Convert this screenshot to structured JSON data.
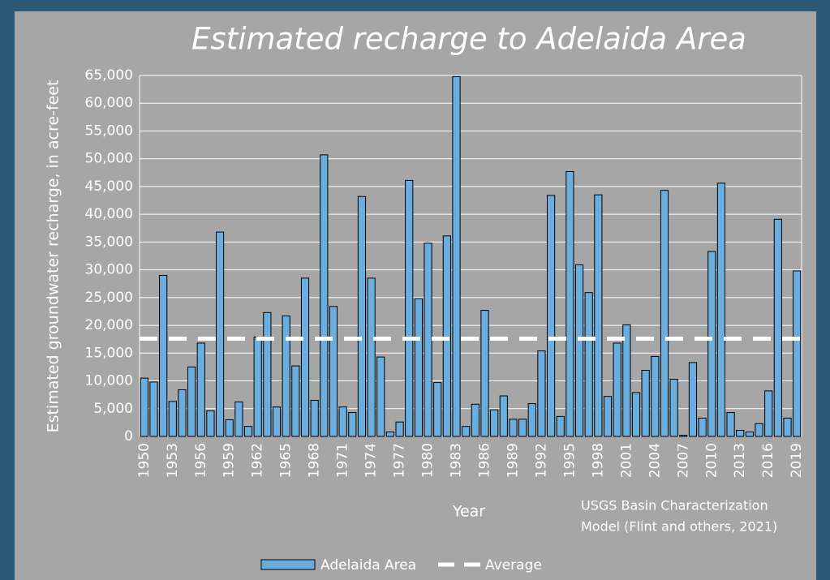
{
  "chart_data": {
    "type": "bar",
    "title": "Estimated recharge to Adelaida Area",
    "x_label": "Year",
    "y_label": "Estimated groundwater recharge, in acre-feet",
    "annotation": [
      "USGS Basin Characterization",
      "Model (Flint and others, 2021)"
    ],
    "categories": [
      "1950",
      null,
      null,
      "1953",
      null,
      null,
      "1956",
      null,
      null,
      "1959",
      null,
      null,
      "1962",
      null,
      null,
      "1965",
      null,
      null,
      "1968",
      null,
      null,
      "1971",
      null,
      null,
      "1974",
      null,
      null,
      "1977",
      null,
      null,
      "1980",
      null,
      null,
      "1983",
      null,
      null,
      "1986",
      null,
      null,
      "1989",
      null,
      null,
      "1992",
      null,
      null,
      "1995",
      null,
      null,
      "1998",
      null,
      null,
      "2001",
      null,
      null,
      "2004",
      null,
      null,
      "2007",
      null,
      null,
      "2010",
      null,
      null,
      "2013",
      null,
      null,
      "2016",
      null,
      null,
      "2019"
    ],
    "series": [
      {
        "name": "Adelaida Area",
        "color": "#6aaee0",
        "values": [
          10500,
          9800,
          29000,
          6300,
          8400,
          12500,
          16800,
          4600,
          36800,
          3000,
          6200,
          1800,
          17900,
          22300,
          5300,
          21700,
          12700,
          28500,
          6500,
          50700,
          23400,
          5300,
          4300,
          43200,
          28500,
          14300,
          800,
          2600,
          46100,
          24800,
          34800,
          9700,
          36100,
          64800,
          1800,
          5800,
          22700,
          4800,
          7300,
          3100,
          3100,
          5900,
          15400,
          43400,
          3600,
          47700,
          30900,
          25900,
          43500,
          7200,
          16800,
          20100,
          7900,
          11900,
          14400,
          44300,
          10300,
          200,
          13300,
          3300,
          33300,
          45600,
          4300,
          1100,
          800,
          2300,
          8200,
          39100,
          3300,
          29800
        ]
      }
    ],
    "average": {
      "name": "Average",
      "value": 17600,
      "color": "#ffffff"
    },
    "ylim": [
      0,
      65000
    ],
    "yticks": [
      0,
      {
        "value": 5000,
        "label": "5,000"
      },
      {
        "value": 10000,
        "label": "10,000"
      },
      {
        "value": 15000,
        "label": "15,000"
      },
      {
        "value": 20000,
        "label": "20,000"
      },
      {
        "value": 25000,
        "label": "25,000"
      },
      {
        "value": 30000,
        "label": "30,000"
      },
      {
        "value": 35000,
        "label": "35,000"
      },
      {
        "value": 40000,
        "label": "40,000"
      },
      {
        "value": 45000,
        "label": "45,000"
      },
      {
        "value": 50000,
        "label": "50,000"
      },
      {
        "value": 55000,
        "label": "55,000"
      },
      {
        "value": 60000,
        "label": "60,000"
      },
      {
        "value": 65000,
        "label": "65,000"
      }
    ],
    "grid": true
  }
}
